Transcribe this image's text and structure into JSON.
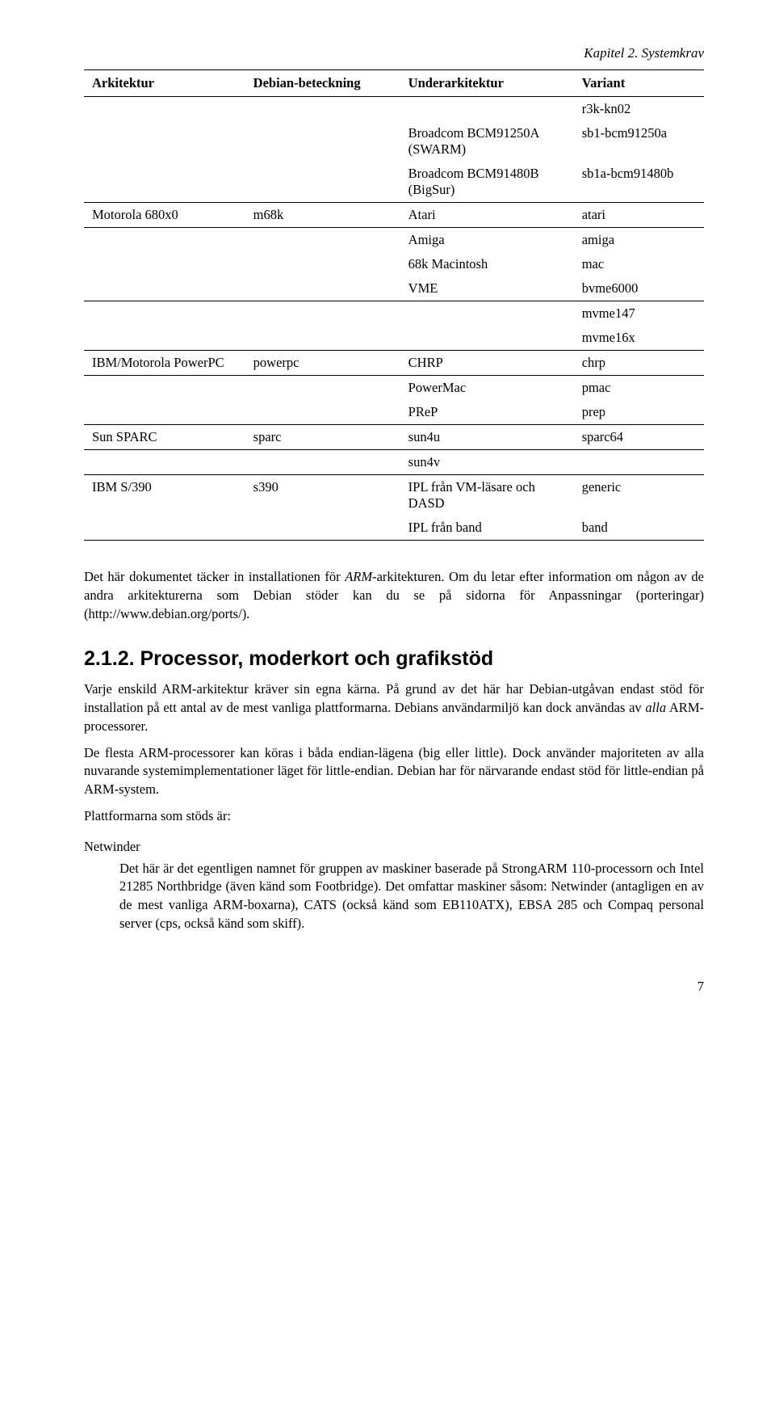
{
  "chapter_header": "Kapitel 2. Systemkrav",
  "table": {
    "headers": [
      "Arkitektur",
      "Debian-beteckning",
      "Underarkitektur",
      "Variant"
    ],
    "rows": [
      {
        "c": [
          "",
          "",
          "",
          "r3k-kn02"
        ],
        "sep": false
      },
      {
        "c": [
          "",
          "",
          "Broadcom BCM91250A (SWARM)",
          "sb1-bcm91250a"
        ],
        "sep": false
      },
      {
        "c": [
          "",
          "",
          "Broadcom BCM91480B (BigSur)",
          "sb1a-bcm91480b"
        ],
        "sep": false
      },
      {
        "c": [
          "Motorola 680x0",
          "m68k",
          "Atari",
          "atari"
        ],
        "sep": true
      },
      {
        "c": [
          "",
          "",
          "Amiga",
          "amiga"
        ],
        "sep": true
      },
      {
        "c": [
          "",
          "",
          "68k Macintosh",
          "mac"
        ],
        "sep": false
      },
      {
        "c": [
          "",
          "",
          "VME",
          "bvme6000"
        ],
        "sep": false
      },
      {
        "c": [
          "",
          "",
          "",
          "mvme147"
        ],
        "sep": true
      },
      {
        "c": [
          "",
          "",
          "",
          "mvme16x"
        ],
        "sep": false
      },
      {
        "c": [
          "IBM/Motorola PowerPC",
          "powerpc",
          "CHRP",
          "chrp"
        ],
        "sep": true
      },
      {
        "c": [
          "",
          "",
          "PowerMac",
          "pmac"
        ],
        "sep": true
      },
      {
        "c": [
          "",
          "",
          "PReP",
          "prep"
        ],
        "sep": false
      },
      {
        "c": [
          "Sun SPARC",
          "sparc",
          "sun4u",
          "sparc64"
        ],
        "sep": true
      },
      {
        "c": [
          "",
          "",
          "sun4v",
          ""
        ],
        "sep": true
      },
      {
        "c": [
          "IBM S/390",
          "s390",
          "IPL från VM-läsare och DASD",
          "generic"
        ],
        "sep": true
      },
      {
        "c": [
          "",
          "",
          "IPL från band",
          "band"
        ],
        "sep": false,
        "bot": true
      }
    ]
  },
  "para1_a": "Det här dokumentet täcker in installationen för ",
  "para1_em": "ARM",
  "para1_b": "-arkitekturen. Om du letar efter information om någon av de andra arkitekturerna som Debian stöder kan du se på sidorna för Anpassningar (porteringar) (http://www.debian.org/ports/).",
  "h2": "2.1.2. Processor, moderkort och grafikstöd",
  "p2_a": "Varje enskild ARM-arkitektur kräver sin egna kärna. På grund av det här har Debian-utgåvan endast stöd för installation på ett antal av de mest vanliga plattformarna. Debians användarmiljö kan dock användas av ",
  "p2_em": "alla",
  "p2_b": " ARM-processorer.",
  "p3": "De flesta ARM-processorer kan köras i båda endian-lägena (big eller little). Dock använder majoriteten av alla nuvarande systemimplementationer läget för little-endian. Debian har för närvarande endast stöd för little-endian på ARM-system.",
  "p4": "Plattformarna som stöds är:",
  "term1": "Netwinder",
  "def1": "Det här är det egentligen namnet för gruppen av maskiner baserade på StrongARM 110-processorn och Intel 21285 Northbridge (även känd som Footbridge). Det omfattar maskiner såsom: Netwinder (antagligen en av de mest vanliga ARM-boxarna), CATS (också känd som EB110ATX), EBSA 285 och Compaq personal server (cps, också känd som skiff).",
  "page_number": "7"
}
